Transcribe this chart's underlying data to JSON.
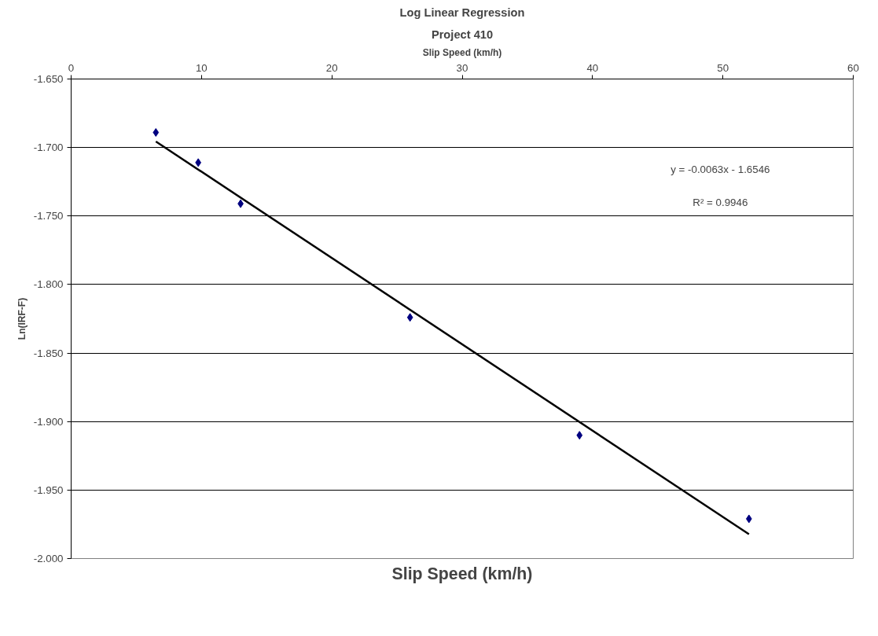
{
  "chart_data": {
    "type": "scatter",
    "title": "Log Linear Regression",
    "subtitle": "Project 410",
    "xlabel": "Slip Speed (km/h)",
    "ylabel": "Ln(IRF-F)",
    "annotations": [
      "y = -0.0063x - 1.6546",
      "R² = 0.9946",
      "Slip Speed (km/h)"
    ],
    "x": [
      6.5,
      9.75,
      13,
      26,
      39,
      52
    ],
    "series": [
      {
        "color": "#000080",
        "marker": "diamond",
        "values": [
          -1.689,
          -1.711,
          -1.741,
          -1.824,
          -1.91,
          -1.971
        ]
      },
      {
        "type": "line",
        "color": "#000000",
        "marker": "none",
        "x": [
          6.5,
          52
        ],
        "values": [
          -1.6956,
          -1.9822
        ]
      }
    ],
    "xlim": [
      0,
      60
    ],
    "xticks": [
      0,
      10,
      20,
      30,
      40,
      50,
      60
    ],
    "ylim": [
      -2.0,
      -1.65
    ],
    "yticks": [
      {
        "value": -2.0,
        "label": "-2.000"
      },
      {
        "value": -1.95,
        "label": "-1.950"
      },
      {
        "value": -1.9,
        "label": "-1.900"
      },
      {
        "value": -1.85,
        "label": "-1.850"
      },
      {
        "value": -1.8,
        "label": "-1.800"
      },
      {
        "value": -1.75,
        "label": "-1.750"
      },
      {
        "value": -1.7,
        "label": "-1.700"
      },
      {
        "value": -1.65,
        "label": "-1.650"
      }
    ],
    "grid": "y"
  }
}
